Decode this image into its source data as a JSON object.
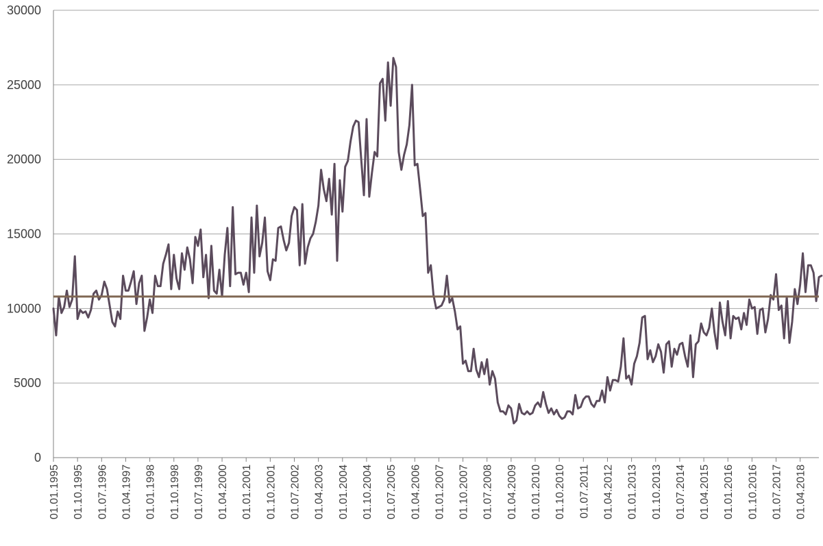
{
  "chart_data": {
    "type": "line",
    "title": "",
    "xlabel": "",
    "ylabel": "",
    "ylim": [
      0,
      30000
    ],
    "xlim": [
      "1995-01",
      "2018-11"
    ],
    "y_ticks": [
      0,
      5000,
      10000,
      15000,
      20000,
      25000,
      30000
    ],
    "x_tick_labels": [
      "01.01.1995",
      "01.10.1995",
      "01.07.1996",
      "01.04.1997",
      "01.01.1998",
      "01.10.1998",
      "01.07.1999",
      "01.04.2000",
      "01.01.2001",
      "01.10.2001",
      "01.07.2002",
      "01.04.2003",
      "01.01.2004",
      "01.10.2004",
      "01.07.2005",
      "01.04.2006",
      "01.01.2007",
      "01.10.2007",
      "01.07.2008",
      "01.04.2009",
      "01.01.2010",
      "01.10.2010",
      "01.07.2011",
      "01.04.2012",
      "01.01.2013",
      "01.10.2013",
      "01.07.2014",
      "01.04.2015",
      "01.01.2016",
      "01.10.2016",
      "01.07.2017",
      "01.04.2018"
    ],
    "x_start": "1995-01",
    "x_step": "1 month",
    "grid": true,
    "legend": "none",
    "series": [
      {
        "color": "#5b4b5c",
        "values": [
          10000,
          8200,
          10800,
          9700,
          10100,
          11200,
          10100,
          10600,
          13500,
          9300,
          9900,
          9700,
          9800,
          9400,
          9900,
          11000,
          11200,
          10600,
          10900,
          11800,
          11300,
          10200,
          9100,
          8800,
          9800,
          9300,
          12200,
          11200,
          11200,
          11800,
          12500,
          10300,
          11700,
          12200,
          8500,
          9400,
          10600,
          9700,
          12200,
          11500,
          11500,
          13000,
          13600,
          14300,
          11300,
          13600,
          12000,
          11300,
          13700,
          12600,
          14100,
          13300,
          11700,
          14800,
          14200,
          15300,
          12100,
          13600,
          10700,
          14200,
          11200,
          11000,
          12600,
          10800,
          13600,
          15400,
          11500,
          16800,
          12300,
          12400,
          12400,
          11600,
          12400,
          11100,
          16100,
          12400,
          16900,
          13500,
          14400,
          16100,
          12500,
          11900,
          13300,
          13200,
          15400,
          15500,
          14600,
          13900,
          14400,
          16200,
          16800,
          16600,
          12900,
          17000,
          13000,
          14100,
          14700,
          15000,
          15800,
          16900,
          19300,
          18000,
          17200,
          18700,
          16300,
          19700,
          13200,
          18600,
          16500,
          19500,
          19900,
          21200,
          22200,
          22600,
          22500,
          20000,
          17600,
          22700,
          17500,
          19100,
          20500,
          20200,
          25100,
          25400,
          22600,
          26500,
          23600,
          26800,
          26200,
          20500,
          19300,
          20300,
          21000,
          22300,
          25000,
          19600,
          19700,
          18000,
          16200,
          16400,
          12400,
          12900,
          10900,
          10000,
          10100,
          10200,
          10600,
          12200,
          10400,
          10700,
          9800,
          8600,
          8800,
          6300,
          6500,
          5800,
          5800,
          7300,
          5900,
          5400,
          6400,
          5600,
          6600,
          4900,
          5800,
          5300,
          3700,
          3100,
          3100,
          2900,
          3500,
          3300,
          2300,
          2500,
          3600,
          3000,
          2900,
          3100,
          2900,
          3000,
          3500,
          3700,
          3400,
          4400,
          3600,
          3000,
          3300,
          2900,
          3200,
          2800,
          2600,
          2700,
          3100,
          3100,
          2900,
          4200,
          3300,
          3400,
          3900,
          4100,
          4100,
          3600,
          3400,
          3800,
          3800,
          4500,
          3700,
          5400,
          4500,
          5200,
          5200,
          5100,
          6100,
          8000,
          5300,
          5500,
          4900,
          6300,
          6800,
          7700,
          9400,
          9500,
          6600,
          7200,
          6400,
          6800,
          7600,
          7100,
          5700,
          7600,
          7800,
          6100,
          7300,
          6900,
          7600,
          7700,
          6800,
          6100,
          8200,
          5400,
          7600,
          7800,
          9000,
          8400,
          8200,
          8700,
          10000,
          8400,
          7300,
          10400,
          9100,
          8200,
          10500,
          8000,
          9500,
          9300,
          9400,
          8600,
          9700,
          8900,
          10600,
          10000,
          10100,
          8300,
          9900,
          10000,
          8400,
          9300,
          10900,
          10600,
          12300,
          9900,
          10200,
          8000,
          10800,
          7700,
          9100,
          11300,
          10300,
          11600,
          13700,
          11100,
          12900,
          12900,
          12400,
          10500,
          12100,
          12200
        ]
      },
      {
        "color": "#7f6652",
        "values": [
          10800,
          10800
        ]
      }
    ]
  }
}
